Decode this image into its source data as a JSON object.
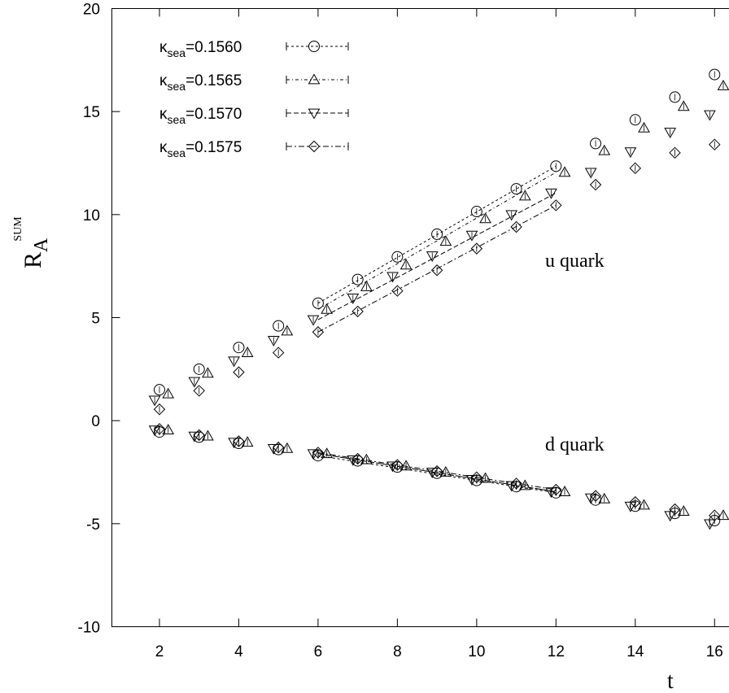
{
  "chart_data": {
    "type": "scatter",
    "title": "",
    "xlabel": "t",
    "ylabel": "R_A^SUM",
    "ylabel_main": "R",
    "ylabel_sub": "A",
    "ylabel_sup": "SUM",
    "xlim": [
      0.8,
      16.6
    ],
    "ylim": [
      -10,
      20
    ],
    "xticks": [
      2,
      4,
      6,
      8,
      10,
      12,
      14,
      16
    ],
    "yticks": [
      -10,
      -5,
      0,
      5,
      10,
      15,
      20
    ],
    "grid": false,
    "legend_position": "top-left",
    "annotations": [
      {
        "text": "u quark",
        "x": 14.0,
        "y": 7.8
      },
      {
        "text": "d quark",
        "x": 14.0,
        "y": -1.2
      }
    ],
    "series": [
      {
        "name": "κsea=0.1560",
        "label_prefix": "κ",
        "label_sub": "sea",
        "label_suffix": "=0.1560",
        "marker": "circle",
        "dash": "3,3",
        "x_offset": 0.0,
        "u": [
          1.5,
          2.5,
          3.55,
          4.6,
          5.7,
          6.85,
          7.95,
          9.05,
          10.15,
          11.25,
          12.35,
          13.45,
          14.6,
          15.7,
          16.8
        ],
        "d": [
          -0.55,
          -0.8,
          -1.1,
          -1.4,
          -1.7,
          -1.95,
          -2.25,
          -2.55,
          -2.9,
          -3.2,
          -3.5,
          -3.85,
          -4.15,
          -4.5,
          -4.85
        ],
        "u_fit": [
          [
            6,
            5.7
          ],
          [
            12,
            12.35
          ]
        ],
        "d_fit": [
          [
            6,
            -1.7
          ],
          [
            12,
            -3.5
          ]
        ]
      },
      {
        "name": "κsea=0.1565",
        "label_prefix": "κ",
        "label_sub": "sea",
        "label_suffix": "=0.1565",
        "marker": "triangle-up",
        "dash": "4,3,1,3",
        "x_offset": 0.22,
        "u": [
          1.3,
          2.3,
          3.3,
          4.35,
          5.4,
          6.5,
          7.55,
          8.7,
          9.8,
          10.9,
          12.05,
          13.1,
          14.2,
          15.25,
          16.25
        ],
        "d": [
          -0.45,
          -0.75,
          -1.05,
          -1.35,
          -1.6,
          -1.9,
          -2.2,
          -2.5,
          -2.8,
          -3.15,
          -3.45,
          -3.8,
          -4.1,
          -4.4,
          -4.6
        ],
        "u_fit": [
          [
            6,
            5.4
          ],
          [
            12,
            12.05
          ]
        ],
        "d_fit": [
          [
            6,
            -1.6
          ],
          [
            12,
            -3.45
          ]
        ]
      },
      {
        "name": "κsea=0.1570",
        "label_prefix": "κ",
        "label_sub": "sea",
        "label_suffix": "=0.1570",
        "marker": "triangle-down",
        "dash": "6,3",
        "x_offset": -0.12,
        "u": [
          1.0,
          1.9,
          2.9,
          3.9,
          4.9,
          5.95,
          7.0,
          8.0,
          9.0,
          10.0,
          11.05,
          12.05,
          13.05,
          14.0,
          14.85
        ],
        "d": [
          -0.45,
          -0.75,
          -1.05,
          -1.35,
          -1.6,
          -1.9,
          -2.2,
          -2.5,
          -2.85,
          -3.15,
          -3.45,
          -3.75,
          -4.15,
          -4.6,
          -5.0
        ],
        "u_fit": [
          [
            6,
            4.9
          ],
          [
            12,
            11.05
          ]
        ],
        "d_fit": [
          [
            6,
            -1.6
          ],
          [
            12,
            -3.45
          ]
        ]
      },
      {
        "name": "κsea=0.1575",
        "label_prefix": "κ",
        "label_sub": "sea",
        "label_suffix": "=0.1575",
        "marker": "diamond",
        "dash": "7,3,2,3",
        "x_offset": 0.0,
        "u": [
          0.55,
          1.45,
          2.35,
          3.3,
          4.3,
          5.3,
          6.3,
          7.3,
          8.35,
          9.4,
          10.45,
          11.45,
          12.25,
          13.0,
          13.4
        ],
        "d": [
          -0.4,
          -0.7,
          -1.0,
          -1.3,
          -1.55,
          -1.85,
          -2.15,
          -2.45,
          -2.75,
          -3.05,
          -3.35,
          -3.65,
          -3.95,
          -4.3,
          -4.6
        ],
        "u_fit": [
          [
            6,
            4.3
          ],
          [
            12,
            10.45
          ]
        ],
        "d_fit": [
          [
            6,
            -1.55
          ],
          [
            12,
            -3.35
          ]
        ]
      }
    ]
  }
}
